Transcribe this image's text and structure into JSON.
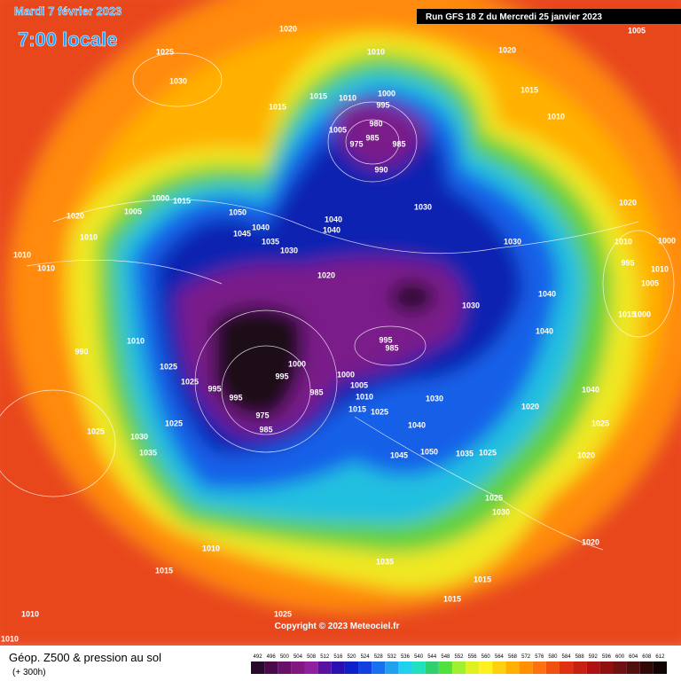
{
  "header": {
    "date": "Mardi 7 février 2023",
    "time": "7:00 locale",
    "run": "Run GFS 18 Z du Mercredi 25 janvier 2023"
  },
  "footer": {
    "title": "Géop. Z500 & pression au sol",
    "lead": "(+ 300h)",
    "copyright": "Copyright © 2023 Meteociel.fr"
  },
  "isobar_labels": [
    1020,
    1010,
    1020,
    1005,
    1025,
    1030,
    1015,
    1015,
    1010,
    1000,
    995,
    1015,
    1010,
    1005,
    980,
    985,
    975,
    985,
    990,
    1030,
    1020,
    1005,
    1000,
    1015,
    1050,
    1020,
    1010,
    1040,
    1045,
    1035,
    1030,
    1040,
    1040,
    1030,
    1010,
    1000,
    995,
    1010,
    1005,
    1010,
    1010,
    1020,
    1040,
    1030,
    1015,
    1000,
    1040,
    990,
    1010,
    1025,
    995,
    985,
    1000,
    995,
    985,
    1025,
    995,
    995,
    1000,
    1005,
    1010,
    1040,
    1030,
    1020,
    1015,
    1025,
    975,
    985,
    1025,
    1040,
    1025,
    1025,
    1030,
    1035,
    1045,
    1050,
    1035,
    1025,
    1020,
    1025,
    1030,
    1010,
    1035,
    1020,
    1015,
    1015,
    1015,
    1010,
    1025,
    1010
  ],
  "colorbar": {
    "values": [
      492,
      496,
      500,
      504,
      508,
      512,
      516,
      520,
      524,
      528,
      532,
      536,
      540,
      544,
      548,
      552,
      556,
      560,
      564,
      568,
      572,
      576,
      580,
      584,
      588,
      592,
      596,
      600,
      604,
      608,
      612
    ],
    "colors": [
      "#2a0a2a",
      "#4a0a4a",
      "#6a106a",
      "#801880",
      "#9020a0",
      "#5a10a0",
      "#2a10b0",
      "#1020c8",
      "#1040e0",
      "#1870f0",
      "#20a0f0",
      "#20d0f0",
      "#20e0c0",
      "#30d070",
      "#50e040",
      "#a0f030",
      "#e0f020",
      "#fff020",
      "#ffd010",
      "#ffb000",
      "#ff9000",
      "#ff7010",
      "#f05010",
      "#e03010",
      "#c82010",
      "#b01010",
      "#901010",
      "#701010",
      "#501010",
      "#300808",
      "#100404"
    ]
  }
}
